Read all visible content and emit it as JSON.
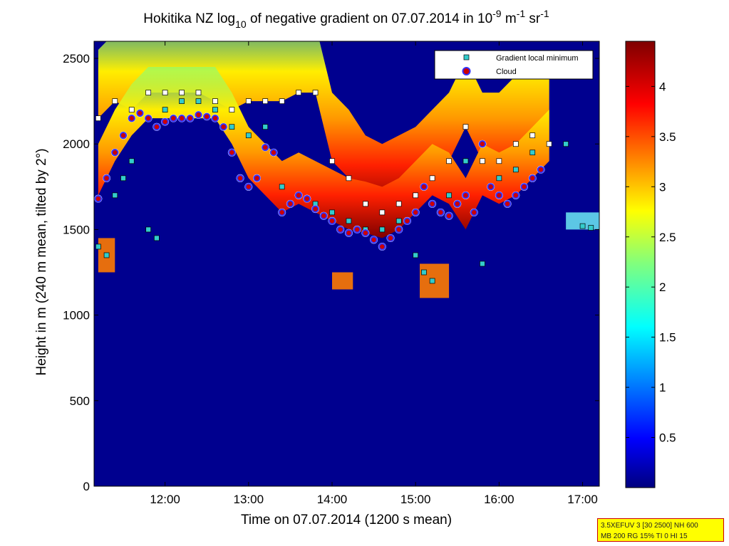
{
  "chart_data": {
    "type": "heatmap",
    "title": {
      "prefix": "Hokitika NZ log",
      "sub": "10",
      "middle": " of negative gradient on 07.07.2014 in 10",
      "sup1": "-9",
      "unit1": " m",
      "sup2": "-1",
      "unit2": " sr",
      "sup3": "-1"
    },
    "xlabel": "Time on 07.07.2014 (1200 s mean)",
    "ylabel": "Height in m (240 m mean, tilted by 2°)",
    "xlim": [
      11.15,
      17.2
    ],
    "ylim": [
      0,
      2600
    ],
    "xticks": [
      {
        "value": 12,
        "label": "12:00"
      },
      {
        "value": 13,
        "label": "13:00"
      },
      {
        "value": 14,
        "label": "14:00"
      },
      {
        "value": 15,
        "label": "15:00"
      },
      {
        "value": 16,
        "label": "16:00"
      },
      {
        "value": 17,
        "label": "17:00"
      }
    ],
    "yticks": [
      {
        "value": 0,
        "label": "0"
      },
      {
        "value": 500,
        "label": "500"
      },
      {
        "value": 1000,
        "label": "1000"
      },
      {
        "value": 1500,
        "label": "1500"
      },
      {
        "value": 2000,
        "label": "2000"
      },
      {
        "value": 2500,
        "label": "2500"
      }
    ],
    "colorbar": {
      "range": [
        0,
        4.45
      ],
      "ticks": [
        {
          "value": 0.5,
          "label": "0.5"
        },
        {
          "value": 1,
          "label": "1"
        },
        {
          "value": 1.5,
          "label": "1.5"
        },
        {
          "value": 2,
          "label": "2"
        },
        {
          "value": 2.5,
          "label": "2.5"
        },
        {
          "value": 3,
          "label": "3"
        },
        {
          "value": 3.5,
          "label": "3.5"
        },
        {
          "value": 4,
          "label": "4"
        }
      ],
      "colormap": "jet"
    },
    "legend": {
      "position": "top-right",
      "entries": [
        {
          "label": "Gradient local minimum",
          "marker": "square",
          "color": "#33cccc"
        },
        {
          "label": "Cloud",
          "marker": "circle",
          "color": "#cc0000"
        }
      ]
    },
    "layers": {
      "lower_layer": {
        "name": "",
        "x": [
          11.2,
          11.4,
          11.6,
          11.8,
          12.0,
          12.2,
          12.4,
          12.6,
          12.8,
          13.0,
          13.2,
          13.4,
          13.6,
          13.8,
          14.0,
          14.2,
          14.4,
          14.6,
          14.8,
          15.0,
          15.2,
          15.4,
          15.6,
          15.8,
          16.0,
          16.2,
          16.4,
          16.6
        ],
        "y": [
          1700,
          1900,
          2050,
          2150,
          2150,
          2150,
          2150,
          2150,
          2000,
          1800,
          1700,
          1600,
          1650,
          1600,
          1550,
          1500,
          1480,
          1450,
          1500,
          1600,
          1700,
          1650,
          1500,
          1700,
          1650,
          1700,
          1800,
          1900
        ]
      },
      "upper_layer": {
        "name": "",
        "x": [
          11.2,
          11.4,
          11.6,
          11.8,
          12.0,
          12.2,
          12.4,
          12.6,
          12.8,
          13.0,
          13.2,
          13.4,
          13.6,
          13.8,
          14.0,
          14.2,
          14.4,
          14.6,
          14.8,
          15.0,
          15.2,
          15.4,
          15.6,
          15.8,
          16.0,
          16.2,
          16.4,
          16.6
        ],
        "y": [
          2150,
          2250,
          2200,
          2300,
          2300,
          2300,
          2300,
          2250,
          2200,
          2250,
          2250,
          2250,
          2300,
          2300,
          1900,
          1800,
          1650,
          1600,
          1650,
          1700,
          1800,
          1900,
          2100,
          1900,
          1900,
          2000,
          2050,
          2000
        ]
      },
      "cloud_base": {
        "x": [
          11.2,
          11.3,
          11.4,
          11.5,
          11.6,
          11.7,
          11.8,
          11.9,
          12.0,
          12.1,
          12.2,
          12.3,
          12.4,
          12.5,
          12.6,
          12.7,
          12.8,
          12.9,
          13.0,
          13.1,
          13.2,
          13.3,
          13.4,
          13.5,
          13.6,
          13.7,
          13.8,
          13.9,
          14.0,
          14.1,
          14.2,
          14.3,
          14.4,
          14.5,
          14.6,
          14.7,
          14.8,
          14.9,
          15.0,
          15.1,
          15.2,
          15.3,
          15.4,
          15.5,
          15.6,
          15.7,
          15.8,
          15.9,
          16.0,
          16.1,
          16.2,
          16.3,
          16.4,
          16.5
        ],
        "y": [
          1680,
          1800,
          1950,
          2050,
          2150,
          2180,
          2150,
          2100,
          2130,
          2150,
          2150,
          2150,
          2170,
          2160,
          2150,
          2100,
          1950,
          1800,
          1750,
          1800,
          1980,
          1950,
          1600,
          1650,
          1700,
          1680,
          1620,
          1580,
          1550,
          1500,
          1480,
          1500,
          1480,
          1440,
          1400,
          1450,
          1500,
          1550,
          1600,
          1750,
          1650,
          1600,
          1580,
          1650,
          1700,
          1600,
          2000,
          1750,
          1700,
          1650,
          1700,
          1750,
          1800,
          1850
        ]
      },
      "gradient_local_minimum": {
        "x": [
          11.2,
          11.3,
          11.4,
          11.5,
          11.6,
          11.8,
          11.9,
          12.0,
          12.2,
          12.4,
          12.6,
          12.8,
          13.0,
          13.2,
          13.4,
          13.6,
          13.8,
          14.0,
          14.2,
          14.4,
          14.6,
          14.8,
          15.0,
          15.1,
          15.2,
          15.4,
          15.6,
          15.8,
          16.0,
          16.2,
          16.4,
          16.8,
          17.0,
          17.1
        ],
        "y": [
          1400,
          1350,
          1700,
          1800,
          1900,
          1500,
          1450,
          2200,
          2250,
          2250,
          2200,
          2100,
          2050,
          2100,
          1750,
          1700,
          1650,
          1600,
          1550,
          1500,
          1500,
          1550,
          1350,
          1250,
          1200,
          1700,
          1900,
          1300,
          1800,
          1850,
          1950,
          2000,
          1520,
          1510
        ]
      },
      "ice_patches": [
        {
          "x": [
            14.0,
            14.25
          ],
          "y": [
            1150,
            1250
          ]
        },
        {
          "x": [
            15.05,
            15.4
          ],
          "y": [
            1100,
            1300
          ]
        },
        {
          "x": [
            11.2,
            11.4
          ],
          "y": [
            1250,
            1450
          ]
        },
        {
          "x": [
            16.8,
            17.2
          ],
          "y": [
            1500,
            1600
          ]
        }
      ]
    }
  },
  "info_box": {
    "line1": "3.5XEFUV 3 [30 2500] NH 600",
    "line2": "MB 200 RG 15% TI 0 HI 15"
  }
}
